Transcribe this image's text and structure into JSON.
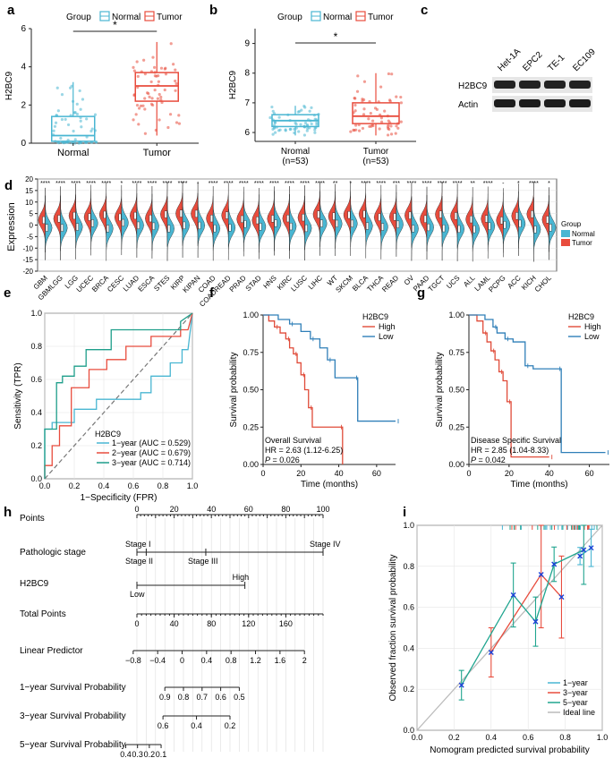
{
  "colors": {
    "normal": "#49b6d2",
    "tumor": "#e84c3d",
    "high": "#e04b39",
    "low": "#2f7fb8",
    "green": "#1e9e8a",
    "ideal": "#bbbbbb",
    "line5": "#20a58f"
  },
  "panels": {
    "a": "a",
    "b": "b",
    "c": "c",
    "d": "d",
    "e": "e",
    "f": "f",
    "g": "g",
    "h": "h",
    "i": "i"
  },
  "chart_data": [
    {
      "id": "a",
      "type": "box",
      "legend_title": "Group",
      "legend": [
        "Normal",
        "Tumor"
      ],
      "ylabel": "H2BC9",
      "categories": [
        "Normal",
        "Tumor"
      ],
      "ylim": [
        0,
        6
      ],
      "yticks": [
        "0",
        "2",
        "4",
        "6"
      ],
      "significance": "*",
      "boxes": [
        {
          "q1": 0.1,
          "median": 0.4,
          "q3": 1.4,
          "low": 0,
          "high": 3.2
        },
        {
          "q1": 2.2,
          "median": 3.0,
          "q3": 3.7,
          "low": 0.4,
          "high": 5.3
        }
      ]
    },
    {
      "id": "b",
      "type": "box",
      "legend_title": "Group",
      "legend": [
        "Normal",
        "Tumor"
      ],
      "ylabel": "H2BC9",
      "categories": [
        "Nromal\n(n=53)",
        "Tumor\n(n=53)"
      ],
      "cat_line1": [
        "Nromal",
        "Tumor"
      ],
      "cat_line2": [
        "(n=53)",
        "(n=53)"
      ],
      "ylim": [
        5.7,
        9.5
      ],
      "yticks": [
        "6",
        "7",
        "8",
        "9"
      ],
      "significance": "*",
      "boxes": [
        {
          "q1": 6.2,
          "median": 6.4,
          "q3": 6.6,
          "low": 5.9,
          "high": 6.9
        },
        {
          "q1": 6.3,
          "median": 6.55,
          "q3": 7.0,
          "low": 5.9,
          "high": 8.0
        }
      ]
    },
    {
      "id": "c",
      "type": "blot",
      "lanes": [
        "Het-1A",
        "EPC2",
        "TE-1",
        "EC109"
      ],
      "rows": [
        "H2BC9",
        "Actin"
      ]
    },
    {
      "id": "d",
      "type": "split-violin",
      "ylabel": "Expression",
      "ylim": [
        -20,
        20
      ],
      "yticks": [
        "20",
        "15",
        "10",
        "5",
        "0",
        "-5",
        "-10",
        "-15",
        "-20"
      ],
      "legend_title": "Group",
      "legend": [
        "Normal",
        "Tumor"
      ],
      "categories": [
        "GBM",
        "GBMLGG",
        "LGG",
        "UCEC",
        "BRCA",
        "CESC",
        "LUAD",
        "ESCA",
        "STES",
        "KIRP",
        "KIPAN",
        "COAD",
        "COADREAD",
        "PRAD",
        "STAD",
        "HNS",
        "KIRC",
        "LUSC",
        "LIHC",
        "WT",
        "SKCM",
        "BLCA",
        "THCA",
        "READ",
        "OV",
        "PAAD",
        "TGCT",
        "UCS",
        "ALL",
        "LAML",
        "PCPG",
        "ACC",
        "KICH",
        "CHOL"
      ],
      "significance": [
        "****",
        "****",
        "****",
        "****",
        "****",
        "*",
        "****",
        "****",
        "****",
        "****",
        "-",
        "****",
        "****",
        "****",
        "****",
        "****",
        "****",
        "****",
        "****",
        "**",
        "*",
        "****",
        "****",
        "***",
        "****",
        "****",
        "****",
        "****",
        "**",
        "****",
        "-",
        "*",
        "****",
        "*"
      ]
    },
    {
      "id": "e",
      "type": "roc",
      "xlabel": "1−Specificity (FPR)",
      "ylabel": "Sensitivity (TPR)",
      "xticks": [
        "0.0",
        "0.2",
        "0.4",
        "0.6",
        "0.8",
        "1.0"
      ],
      "yticks": [
        "0.0",
        "0.2",
        "0.4",
        "0.6",
        "0.8",
        "1.0"
      ],
      "legend_title": "H2BC9",
      "series": [
        {
          "name": "1−year (AUC = 0.529)",
          "points": [
            [
              0,
              0
            ],
            [
              0,
              0.3
            ],
            [
              0.05,
              0.3
            ],
            [
              0.05,
              0.34
            ],
            [
              0.15,
              0.34
            ],
            [
              0.2,
              0.34
            ],
            [
              0.2,
              0.42
            ],
            [
              0.35,
              0.42
            ],
            [
              0.35,
              0.48
            ],
            [
              0.65,
              0.48
            ],
            [
              0.65,
              0.52
            ],
            [
              0.72,
              0.52
            ],
            [
              0.72,
              0.62
            ],
            [
              0.85,
              0.62
            ],
            [
              0.85,
              0.7
            ],
            [
              0.93,
              0.7
            ],
            [
              0.93,
              0.78
            ],
            [
              0.97,
              0.78
            ],
            [
              1,
              1
            ]
          ]
        },
        {
          "name": "2−year (AUC = 0.679)",
          "points": [
            [
              0,
              0
            ],
            [
              0,
              0.08
            ],
            [
              0.05,
              0.08
            ],
            [
              0.05,
              0.2
            ],
            [
              0.1,
              0.2
            ],
            [
              0.1,
              0.32
            ],
            [
              0.18,
              0.32
            ],
            [
              0.18,
              0.55
            ],
            [
              0.3,
              0.55
            ],
            [
              0.3,
              0.66
            ],
            [
              0.42,
              0.66
            ],
            [
              0.42,
              0.72
            ],
            [
              0.55,
              0.72
            ],
            [
              0.55,
              0.8
            ],
            [
              0.72,
              0.8
            ],
            [
              0.72,
              0.86
            ],
            [
              0.92,
              0.86
            ],
            [
              0.92,
              0.9
            ],
            [
              0.97,
              0.9
            ],
            [
              1,
              1
            ]
          ]
        },
        {
          "name": "3−year (AUC = 0.714)",
          "points": [
            [
              0,
              0
            ],
            [
              0,
              0.3
            ],
            [
              0.08,
              0.3
            ],
            [
              0.08,
              0.58
            ],
            [
              0.12,
              0.58
            ],
            [
              0.12,
              0.62
            ],
            [
              0.2,
              0.62
            ],
            [
              0.2,
              0.68
            ],
            [
              0.28,
              0.68
            ],
            [
              0.28,
              0.78
            ],
            [
              0.45,
              0.78
            ],
            [
              0.45,
              0.9
            ],
            [
              0.92,
              0.9
            ],
            [
              0.92,
              0.95
            ],
            [
              1,
              1
            ]
          ]
        }
      ]
    },
    {
      "id": "f",
      "type": "km",
      "xlabel": "Time (months)",
      "ylabel": "Survival probability",
      "xmax": 70,
      "xticks": [
        "0",
        "20",
        "40",
        "60"
      ],
      "yticks": [
        "0.00",
        "0.25",
        "0.50",
        "0.75",
        "1.00"
      ],
      "legend_title": "H2BC9",
      "legend": [
        "High",
        "Low"
      ],
      "annotation": [
        "Overall Survival",
        "HR = 2.63 (1.12-6.25)",
        "P = 0.026"
      ],
      "series": [
        {
          "name": "High",
          "steps": [
            [
              0,
              1
            ],
            [
              3,
              0.96
            ],
            [
              6,
              0.92
            ],
            [
              9,
              0.88
            ],
            [
              12,
              0.84
            ],
            [
              14,
              0.78
            ],
            [
              16,
              0.74
            ],
            [
              18,
              0.68
            ],
            [
              20,
              0.6
            ],
            [
              22,
              0.5
            ],
            [
              24,
              0.38
            ],
            [
              26,
              0.25
            ],
            [
              40,
              0.25
            ],
            [
              42,
              0
            ]
          ]
        },
        {
          "name": "Low",
          "steps": [
            [
              0,
              1
            ],
            [
              8,
              0.97
            ],
            [
              14,
              0.94
            ],
            [
              20,
              0.89
            ],
            [
              25,
              0.84
            ],
            [
              30,
              0.78
            ],
            [
              34,
              0.7
            ],
            [
              38,
              0.58
            ],
            [
              48,
              0.58
            ],
            [
              50,
              0.29
            ],
            [
              70,
              0.29
            ]
          ]
        }
      ]
    },
    {
      "id": "g",
      "type": "km",
      "xlabel": "Time (months)",
      "ylabel": "Survival probability",
      "xmax": 70,
      "xticks": [
        "0",
        "20",
        "40",
        "60"
      ],
      "yticks": [
        "0.00",
        "0.25",
        "0.50",
        "0.75",
        "1.00"
      ],
      "legend_title": "H2BC9",
      "legend": [
        "High",
        "Low"
      ],
      "annotation": [
        "Disease Specific Survival",
        "HR = 2.85 (1.04-8.33)",
        "P = 0.042"
      ],
      "series": [
        {
          "name": "High",
          "steps": [
            [
              0,
              1
            ],
            [
              4,
              0.96
            ],
            [
              7,
              0.88
            ],
            [
              9,
              0.82
            ],
            [
              11,
              0.76
            ],
            [
              13,
              0.7
            ],
            [
              15,
              0.62
            ],
            [
              17,
              0.56
            ],
            [
              19,
              0.42
            ],
            [
              21,
              0.05
            ],
            [
              40,
              0.05
            ]
          ]
        },
        {
          "name": "Low",
          "steps": [
            [
              0,
              1
            ],
            [
              8,
              0.97
            ],
            [
              12,
              0.92
            ],
            [
              14,
              0.88
            ],
            [
              18,
              0.84
            ],
            [
              22,
              0.82
            ],
            [
              28,
              0.66
            ],
            [
              32,
              0.64
            ],
            [
              44,
              0.64
            ],
            [
              46,
              0.08
            ],
            [
              68,
              0.08
            ]
          ]
        }
      ]
    },
    {
      "id": "h",
      "type": "nomogram",
      "rows": [
        {
          "label": "Points",
          "ticks": [
            "0",
            "20",
            "40",
            "60",
            "80",
            "100"
          ]
        },
        {
          "label": "Pathologic stage",
          "top": [
            "Stage I",
            "Stage IV"
          ],
          "bottom": [
            "Stage II",
            "Stage III"
          ]
        },
        {
          "label": "H2BC9",
          "top": [
            "High"
          ],
          "bottom": [
            "Low"
          ]
        },
        {
          "label": "Total Points",
          "ticks": [
            "0",
            "40",
            "80",
            "120",
            "160"
          ]
        },
        {
          "label": "Linear Predictor",
          "ticks": [
            "−0.8",
            "−0.4",
            "0",
            "0.4",
            "0.8",
            "1.2",
            "1.6",
            "2"
          ]
        },
        {
          "label": "1−year Survival Probability",
          "ticks": [
            "0.9",
            "0.8",
            "0.7",
            "0.6",
            "0.5"
          ]
        },
        {
          "label": "3−year Survival Probability",
          "ticks": [
            "0.6",
            "0.4",
            "0.2"
          ]
        },
        {
          "label": "5−year Survival Probability",
          "ticks": [
            "0.4",
            "0.3",
            "0.2",
            "0.1"
          ]
        }
      ]
    },
    {
      "id": "i",
      "type": "calibration",
      "xlabel": "Nomogram predicted survival probability",
      "ylabel": "Observed fraction survival probability",
      "xticks": [
        "0.0",
        "0.2",
        "0.4",
        "0.6",
        "0.8",
        "1.0"
      ],
      "yticks": [
        "0.0",
        "0.2",
        "0.4",
        "0.6",
        "0.8",
        "1.0"
      ],
      "legend": [
        "1−year",
        "3−year",
        "5−year",
        "Ideal line"
      ],
      "series": [
        {
          "name": "1-year",
          "points": [
            [
              0.88,
              0.85
            ],
            [
              0.94,
              0.89
            ]
          ]
        },
        {
          "name": "3-year",
          "points": [
            [
              0.4,
              0.38
            ],
            [
              0.67,
              0.76
            ],
            [
              0.78,
              0.65
            ]
          ]
        },
        {
          "name": "5-year",
          "points": [
            [
              0.24,
              0.22
            ],
            [
              0.52,
              0.66
            ],
            [
              0.64,
              0.53
            ],
            [
              0.74,
              0.81
            ],
            [
              0.9,
              0.88
            ]
          ]
        }
      ]
    }
  ]
}
